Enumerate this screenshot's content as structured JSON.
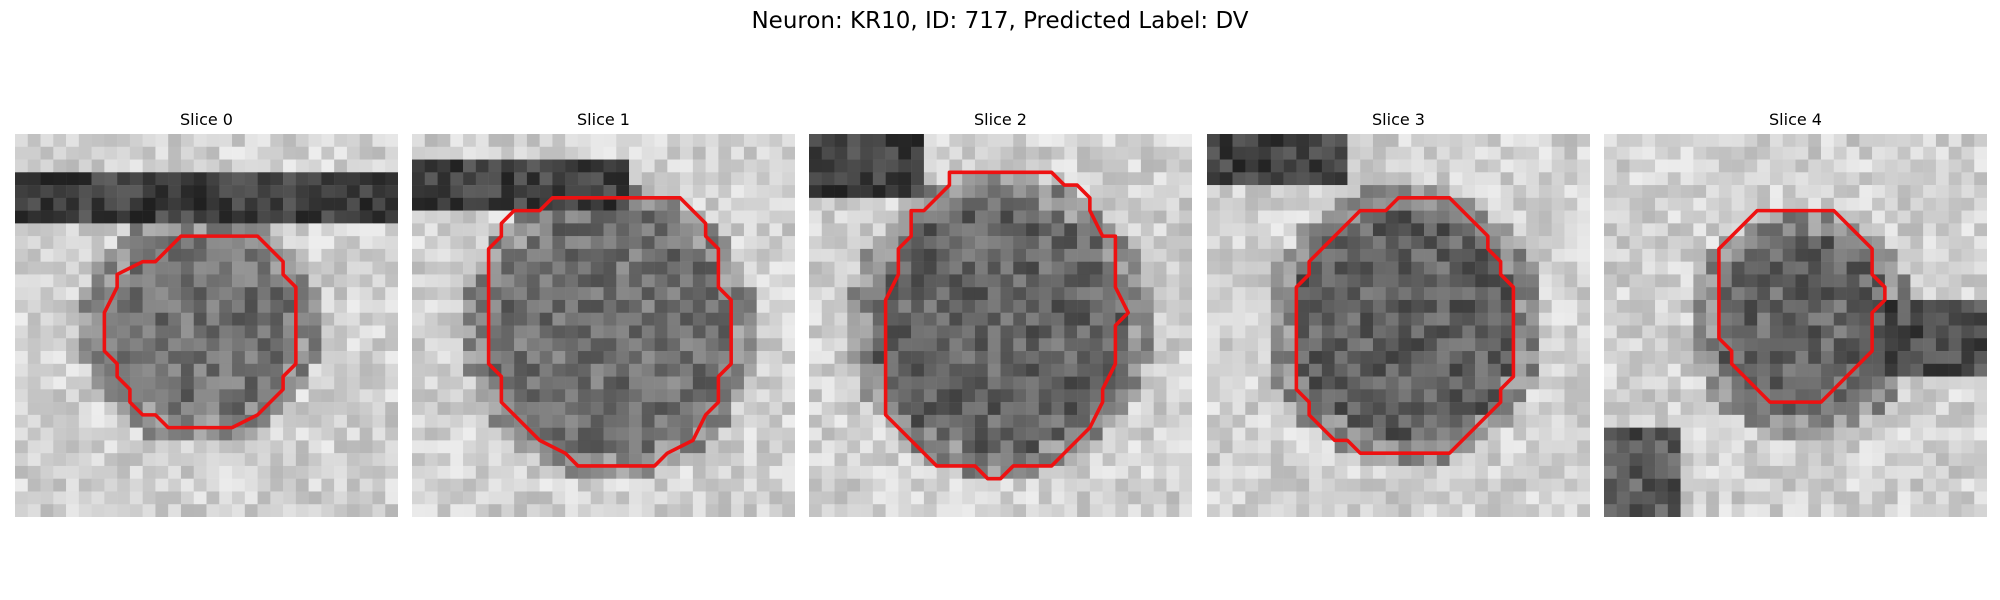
{
  "figure": {
    "title": "Neuron: KR10, ID: 717, Predicted Label: DV",
    "contour_color": "#ee1111"
  },
  "panels": [
    {
      "title": "Slice 0"
    },
    {
      "title": "Slice 1"
    },
    {
      "title": "Slice 2"
    },
    {
      "title": "Slice 3"
    },
    {
      "title": "Slice 4"
    }
  ]
}
